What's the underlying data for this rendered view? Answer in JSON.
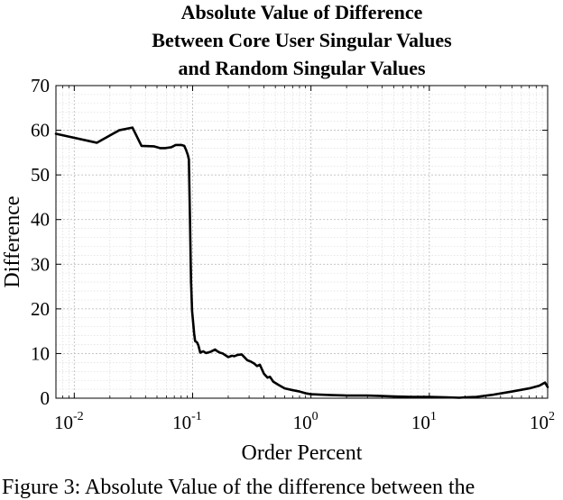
{
  "chart_data": {
    "type": "line",
    "title": [
      "Absolute Value of Difference",
      "Between Core User Singular Values",
      "and Random Singular Values"
    ],
    "xlabel": "Order Percent",
    "ylabel": "Difference",
    "xscale": "log",
    "xlim": [
      0.007,
      100
    ],
    "ylim": [
      0,
      70
    ],
    "xticks": [
      {
        "base": "10",
        "exp": "-2",
        "value": 0.01
      },
      {
        "base": "10",
        "exp": "-1",
        "value": 0.1
      },
      {
        "base": "10",
        "exp": "0",
        "value": 1
      },
      {
        "base": "10",
        "exp": "1",
        "value": 10
      },
      {
        "base": "10",
        "exp": "2",
        "value": 100
      }
    ],
    "yticks": [
      "0",
      "10",
      "20",
      "30",
      "40",
      "50",
      "60",
      "70"
    ],
    "grid": true,
    "series": [
      {
        "color": "#000000",
        "x": [
          0.007,
          0.0155,
          0.024,
          0.031,
          0.037,
          0.047,
          0.053,
          0.059,
          0.066,
          0.072,
          0.08,
          0.085,
          0.088,
          0.091,
          0.093,
          0.095,
          0.097,
          0.099,
          0.101,
          0.103,
          0.105,
          0.109,
          0.112,
          0.116,
          0.123,
          0.13,
          0.142,
          0.155,
          0.162,
          0.17,
          0.18,
          0.2,
          0.215,
          0.225,
          0.24,
          0.26,
          0.29,
          0.31,
          0.33,
          0.35,
          0.37,
          0.4,
          0.43,
          0.45,
          0.48,
          0.53,
          0.6,
          0.7,
          0.8,
          0.9,
          1.0,
          1.2,
          1.5,
          2.0,
          3.0,
          4.0,
          5.0,
          7.0,
          10,
          14,
          18,
          20,
          25,
          35,
          50,
          70,
          85,
          95,
          100
        ],
        "y": [
          59.2,
          57.2,
          60.0,
          60.6,
          56.5,
          56.4,
          56.0,
          56.0,
          56.2,
          56.7,
          56.7,
          56.5,
          55.6,
          54.5,
          53.5,
          40.0,
          26.0,
          19.5,
          17.0,
          14.5,
          12.8,
          12.5,
          11.8,
          10.2,
          10.5,
          10.1,
          10.4,
          10.9,
          10.5,
          10.2,
          10.0,
          9.2,
          9.5,
          9.4,
          9.7,
          9.8,
          8.5,
          8.2,
          7.8,
          7.2,
          7.5,
          5.5,
          4.6,
          4.8,
          3.7,
          3.0,
          2.2,
          1.8,
          1.5,
          1.1,
          0.9,
          0.8,
          0.7,
          0.6,
          0.6,
          0.5,
          0.4,
          0.3,
          0.3,
          0.2,
          0.1,
          0.2,
          0.3,
          0.8,
          1.5,
          2.2,
          2.8,
          3.5,
          2.5
        ]
      }
    ]
  },
  "caption": "Figure 3: Absolute Value of the difference between the"
}
